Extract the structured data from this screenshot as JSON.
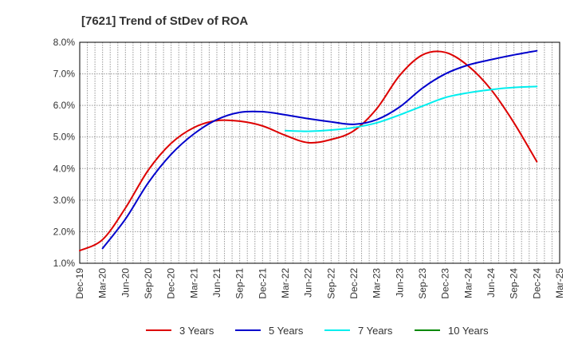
{
  "chart_data": {
    "type": "line",
    "title": "[7621]  Trend of StDev of ROA",
    "xlabel": "",
    "ylabel": "",
    "x_ticks": [
      "Dec-19",
      "Mar-20",
      "Jun-20",
      "Sep-20",
      "Dec-20",
      "Mar-21",
      "Jun-21",
      "Sep-21",
      "Dec-21",
      "Mar-22",
      "Jun-22",
      "Sep-22",
      "Dec-22",
      "Mar-23",
      "Jun-23",
      "Sep-23",
      "Dec-23",
      "Mar-24",
      "Jun-24",
      "Sep-24",
      "Dec-24",
      "Mar-25"
    ],
    "y_ticks": [
      "1.0%",
      "2.0%",
      "3.0%",
      "4.0%",
      "5.0%",
      "6.0%",
      "7.0%",
      "8.0%"
    ],
    "ylim": [
      1.0,
      8.0
    ],
    "grid": true,
    "legend_position": "bottom",
    "series": [
      {
        "name": "3 Years",
        "color": "#dd0000",
        "points": [
          [
            "Dec-19",
            1.4
          ],
          [
            "Mar-20",
            1.75
          ],
          [
            "Jun-20",
            2.75
          ],
          [
            "Sep-20",
            3.95
          ],
          [
            "Dec-20",
            4.8
          ],
          [
            "Mar-21",
            5.3
          ],
          [
            "Jun-21",
            5.52
          ],
          [
            "Sep-21",
            5.5
          ],
          [
            "Dec-21",
            5.35
          ],
          [
            "Mar-22",
            5.05
          ],
          [
            "Jun-22",
            4.82
          ],
          [
            "Sep-22",
            4.92
          ],
          [
            "Dec-22",
            5.2
          ],
          [
            "Mar-23",
            5.9
          ],
          [
            "Jun-23",
            6.95
          ],
          [
            "Sep-23",
            7.6
          ],
          [
            "Dec-23",
            7.68
          ],
          [
            "Mar-24",
            7.25
          ],
          [
            "Jun-24",
            6.5
          ],
          [
            "Sep-24",
            5.45
          ],
          [
            "Dec-24",
            4.22
          ]
        ]
      },
      {
        "name": "5 Years",
        "color": "#0000cc",
        "points": [
          [
            "Mar-20",
            1.47
          ],
          [
            "Jun-20",
            2.4
          ],
          [
            "Sep-20",
            3.55
          ],
          [
            "Dec-20",
            4.45
          ],
          [
            "Mar-21",
            5.1
          ],
          [
            "Jun-21",
            5.55
          ],
          [
            "Sep-21",
            5.78
          ],
          [
            "Dec-21",
            5.8
          ],
          [
            "Mar-22",
            5.7
          ],
          [
            "Jun-22",
            5.58
          ],
          [
            "Sep-22",
            5.48
          ],
          [
            "Dec-22",
            5.4
          ],
          [
            "Mar-23",
            5.55
          ],
          [
            "Jun-23",
            5.95
          ],
          [
            "Sep-23",
            6.55
          ],
          [
            "Dec-23",
            7.0
          ],
          [
            "Mar-24",
            7.28
          ],
          [
            "Jun-24",
            7.45
          ],
          [
            "Sep-24",
            7.6
          ],
          [
            "Dec-24",
            7.73
          ]
        ]
      },
      {
        "name": "7 Years",
        "color": "#00eeee",
        "points": [
          [
            "Mar-22",
            5.2
          ],
          [
            "Jun-22",
            5.18
          ],
          [
            "Sep-22",
            5.22
          ],
          [
            "Dec-22",
            5.3
          ],
          [
            "Mar-23",
            5.45
          ],
          [
            "Jun-23",
            5.7
          ],
          [
            "Sep-23",
            5.98
          ],
          [
            "Dec-23",
            6.25
          ],
          [
            "Mar-24",
            6.4
          ],
          [
            "Jun-24",
            6.5
          ],
          [
            "Sep-24",
            6.57
          ],
          [
            "Dec-24",
            6.6
          ]
        ]
      },
      {
        "name": "10 Years",
        "color": "#008800",
        "points": []
      }
    ]
  }
}
